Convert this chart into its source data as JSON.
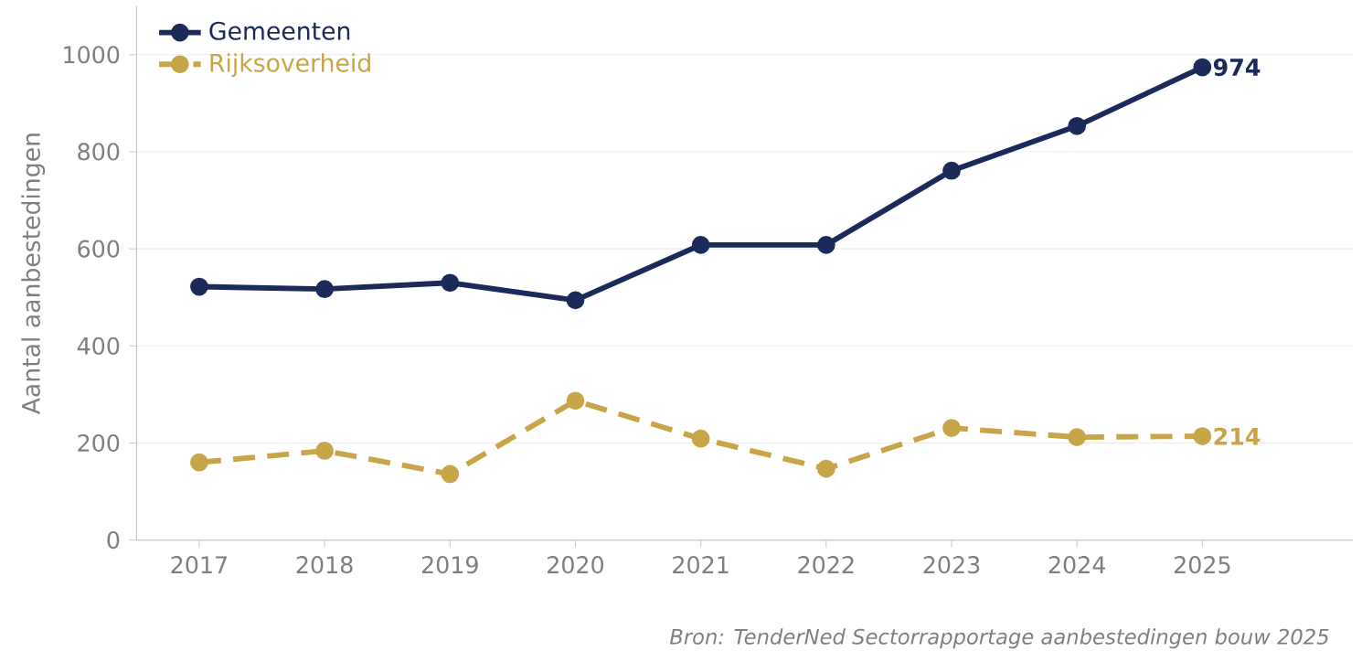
{
  "chart_data": {
    "type": "line",
    "ylabel": "Aantal aanbestedingen",
    "x": [
      2017,
      2018,
      2019,
      2020,
      2021,
      2022,
      2023,
      2024,
      2025
    ],
    "xlim": [
      2016.5,
      2026.2
    ],
    "xticks": [
      2017,
      2018,
      2019,
      2020,
      2021,
      2022,
      2023,
      2024,
      2025
    ],
    "ylim": [
      0,
      1100
    ],
    "yticks": [
      0,
      200,
      400,
      600,
      800,
      1000
    ],
    "grid": "y",
    "legend": "top left",
    "marker": "circle",
    "series": [
      {
        "name": "Gemeenten",
        "color": "#1b2a5a",
        "line_style": "solid",
        "values": [
          522,
          517,
          530,
          494,
          608,
          608,
          761,
          853,
          974
        ],
        "value_labels": [
          null,
          null,
          null,
          null,
          null,
          null,
          null,
          null,
          "974"
        ]
      },
      {
        "name": "Rijksoverheid",
        "color": "#c9a54a",
        "line_style": "dashed",
        "values": [
          160,
          184,
          136,
          287,
          209,
          147,
          231,
          212,
          214
        ],
        "value_labels": [
          null,
          null,
          null,
          null,
          null,
          null,
          null,
          null,
          "214"
        ]
      }
    ],
    "annotations": [
      "Bron: TenderNed Sectorrapportage aanbestedingen bouw 2025"
    ]
  }
}
